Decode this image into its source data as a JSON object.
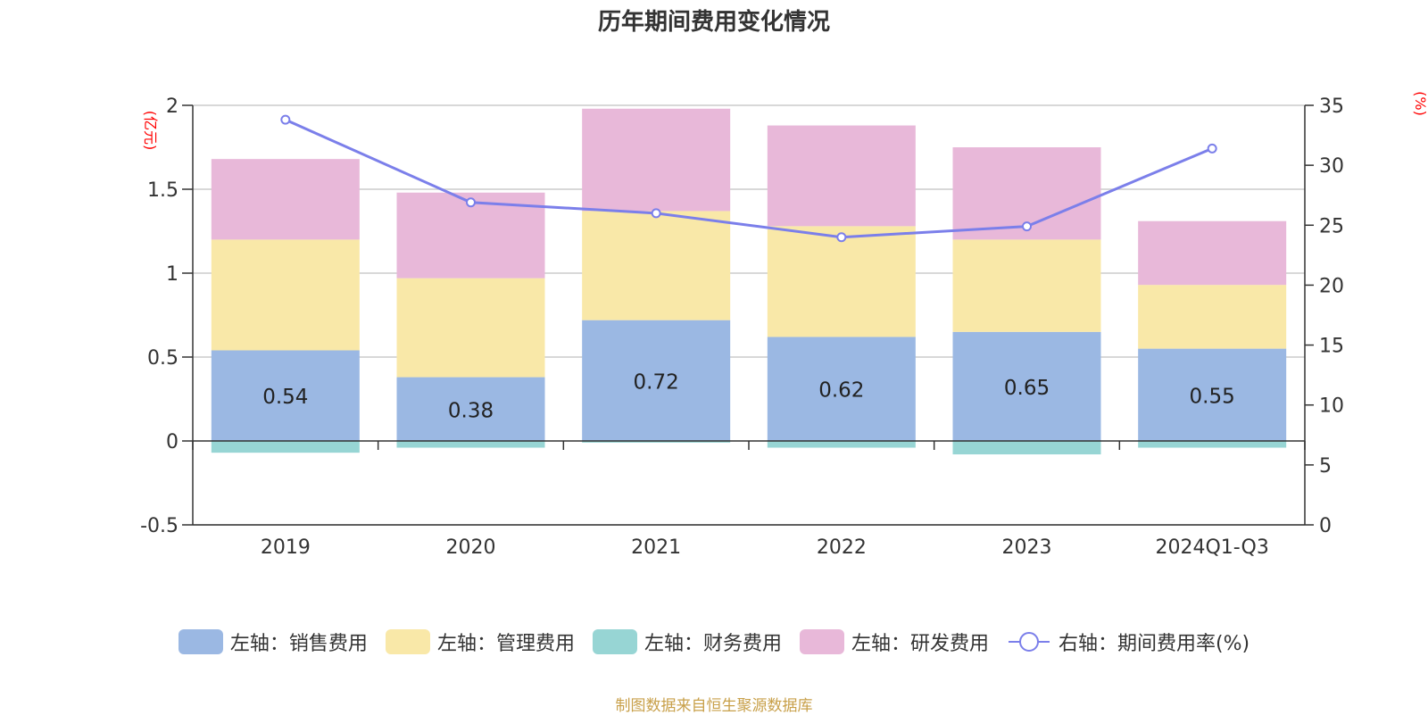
{
  "chart_data": {
    "type": "bar",
    "title": "历年期间费用变化情况",
    "left_axis_unit": "(亿元)",
    "right_axis_unit": "(%)",
    "categories": [
      "2019",
      "2020",
      "2021",
      "2022",
      "2023",
      "2024Q1-Q3"
    ],
    "left_ylim": [
      -0.5,
      2
    ],
    "left_ticks": [
      "-0.5",
      "0",
      "0.5",
      "1",
      "1.5",
      "2"
    ],
    "right_ylim": [
      0,
      35
    ],
    "right_ticks": [
      "0",
      "5",
      "10",
      "15",
      "20",
      "25",
      "30",
      "35"
    ],
    "series": [
      {
        "name": "左轴：销售费用",
        "color": "#9bb8e3",
        "values": [
          0.54,
          0.38,
          0.72,
          0.62,
          0.65,
          0.55
        ],
        "labels": [
          "0.54",
          "0.38",
          "0.72",
          "0.62",
          "0.65",
          "0.55"
        ]
      },
      {
        "name": "左轴：管理费用",
        "color": "#f9e8a8",
        "values": [
          0.66,
          0.59,
          0.65,
          0.66,
          0.55,
          0.38
        ]
      },
      {
        "name": "左轴：财务费用",
        "color": "#97d5d4",
        "values": [
          -0.07,
          -0.04,
          -0.01,
          -0.04,
          -0.08,
          -0.04
        ]
      },
      {
        "name": "左轴：研发费用",
        "color": "#e8b8d9",
        "values": [
          0.48,
          0.51,
          0.61,
          0.6,
          0.55,
          0.38
        ]
      }
    ],
    "line_series": {
      "name": "右轴：期间费用率(%)",
      "color": "#7b7fea",
      "values": [
        33.8,
        26.9,
        26.0,
        24.0,
        24.9,
        31.4
      ]
    }
  },
  "source_text": "制图数据来自恒生聚源数据库"
}
